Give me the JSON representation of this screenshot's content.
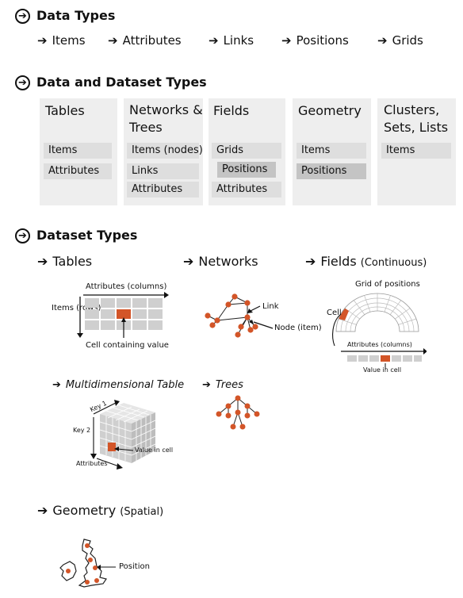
{
  "sections": {
    "data_types": {
      "title": "Data Types",
      "items": [
        "Items",
        "Attributes",
        "Links",
        "Positions",
        "Grids"
      ]
    },
    "data_and_dataset_types": {
      "title": "Data and Dataset Types",
      "columns": [
        {
          "title": "Tables",
          "cells": [
            "Items",
            "Attributes"
          ]
        },
        {
          "title": "Networks & Trees",
          "cells": [
            "Items (nodes)",
            "Links",
            "Attributes"
          ]
        },
        {
          "title": "Fields",
          "cells": [
            "Grids",
            "Positions",
            "Attributes"
          ]
        },
        {
          "title": "Geometry",
          "cells": [
            "Items",
            "Positions"
          ]
        },
        {
          "title": "Clusters, Sets, Lists",
          "cells": [
            "Items"
          ]
        }
      ]
    },
    "dataset_types": {
      "title": "Dataset Types",
      "tables": {
        "label": "Tables",
        "attributes_label": "Attributes (columns)",
        "items_label": "Items (rows)",
        "cell_label": "Cell containing value"
      },
      "networks": {
        "label": "Networks",
        "link_label": "Link",
        "node_label": "Node (item)"
      },
      "fields": {
        "label": "Fields",
        "qualifier": "(Continuous)",
        "grid_label": "Grid of positions",
        "cell_label": "Cell",
        "attributes_label": "Attributes (columns)",
        "value_label": "Value in cell"
      },
      "multidim": {
        "label": "Multidimensional Table",
        "key1": "Key 1",
        "key2": "Key 2",
        "attributes": "Attributes",
        "value": "Value in cell"
      },
      "trees": {
        "label": "Trees"
      },
      "geometry": {
        "label": "Geometry",
        "qualifier": "(Spatial)",
        "position_label": "Position"
      }
    }
  },
  "colors": {
    "accent": "#d35528",
    "panel": "#eeeeee",
    "cell": "#dedede",
    "cell_dark": "#c4c4c4"
  }
}
